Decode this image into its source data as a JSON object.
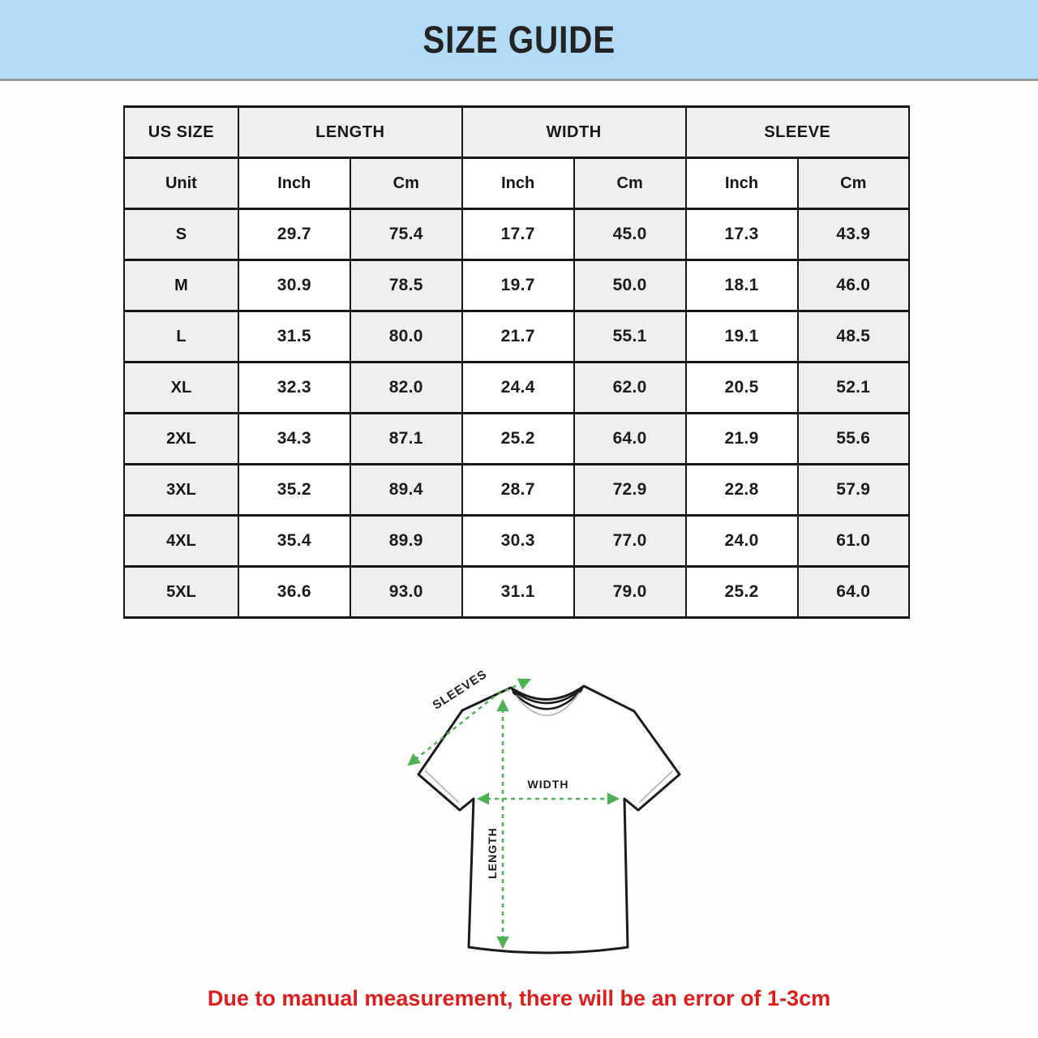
{
  "banner": {
    "title": "SIZE GUIDE",
    "bg_color": "#B4DBF5"
  },
  "table": {
    "group_headers": [
      {
        "label": "US SIZE",
        "colspan": 1
      },
      {
        "label": "LENGTH",
        "colspan": 2
      },
      {
        "label": "WIDTH",
        "colspan": 2
      },
      {
        "label": "SLEEVE",
        "colspan": 2
      }
    ],
    "unit_row": {
      "label": "Unit",
      "cols": [
        "Inch",
        "Cm",
        "Inch",
        "Cm",
        "Inch",
        "Cm"
      ]
    },
    "rows": [
      {
        "size": "S",
        "values": [
          "29.7",
          "75.4",
          "17.7",
          "45.0",
          "17.3",
          "43.9"
        ]
      },
      {
        "size": "M",
        "values": [
          "30.9",
          "78.5",
          "19.7",
          "50.0",
          "18.1",
          "46.0"
        ]
      },
      {
        "size": "L",
        "values": [
          "31.5",
          "80.0",
          "21.7",
          "55.1",
          "19.1",
          "48.5"
        ]
      },
      {
        "size": "XL",
        "values": [
          "32.3",
          "82.0",
          "24.4",
          "62.0",
          "20.5",
          "52.1"
        ]
      },
      {
        "size": "2XL",
        "values": [
          "34.3",
          "87.1",
          "25.2",
          "64.0",
          "21.9",
          "55.6"
        ]
      },
      {
        "size": "3XL",
        "values": [
          "35.2",
          "89.4",
          "28.7",
          "72.9",
          "22.8",
          "57.9"
        ]
      },
      {
        "size": "4XL",
        "values": [
          "35.4",
          "89.9",
          "30.3",
          "77.0",
          "24.0",
          "61.0"
        ]
      },
      {
        "size": "5XL",
        "values": [
          "36.6",
          "93.0",
          "31.1",
          "79.0",
          "25.2",
          "64.0"
        ]
      }
    ]
  },
  "diagram": {
    "labels": {
      "sleeves": "SLEEVES",
      "width": "WIDTH",
      "length": "LENGTH"
    },
    "arrow_color": "#4FB255"
  },
  "footnote": {
    "text": "Due to manual measurement, there will be an error of 1-3cm",
    "color": "#DC1E1E"
  }
}
